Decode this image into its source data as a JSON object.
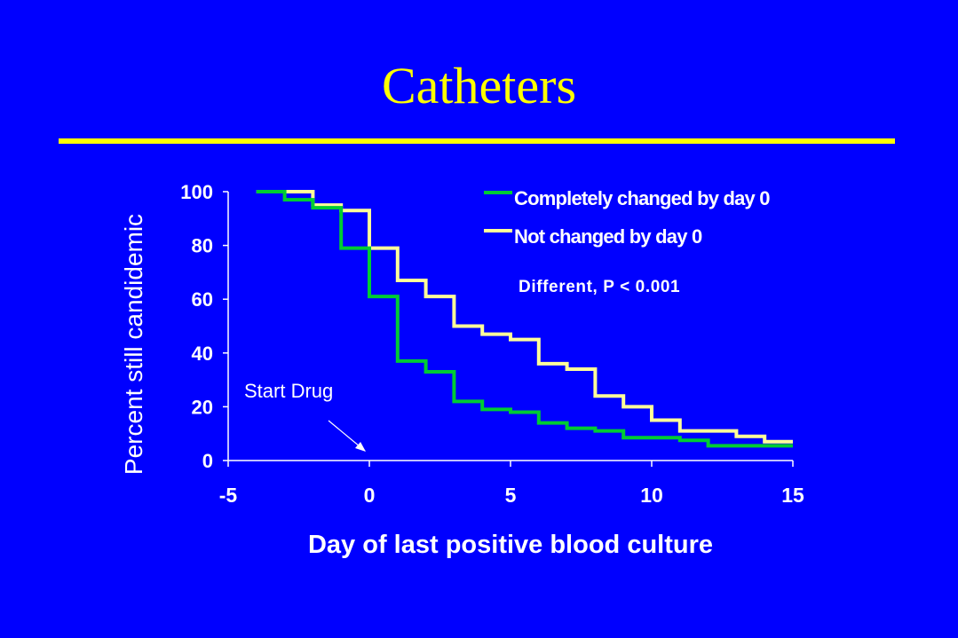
{
  "slide": {
    "title": "Catheters",
    "colors": {
      "background": "#0000ff",
      "title": "#ffff00",
      "rule": "#ffff00",
      "text": "#ffffff"
    }
  },
  "chart_data": {
    "type": "line",
    "step": true,
    "xlabel": "Day of last positive blood culture",
    "ylabel": "Percent still candidemic",
    "xlim": [
      -5,
      15
    ],
    "ylim": [
      0,
      100
    ],
    "x_ticks": [
      -5,
      0,
      5,
      10,
      15
    ],
    "y_ticks": [
      0,
      20,
      40,
      60,
      80,
      100
    ],
    "grid": false,
    "legend_position": "top-right",
    "series": [
      {
        "name": "Completely changed by day 0",
        "color": "#00cc33",
        "x": [
          -4,
          -3,
          -2,
          -1,
          0,
          1,
          2,
          3,
          4,
          5,
          6,
          7,
          8,
          9,
          10,
          11,
          12,
          13,
          14,
          15
        ],
        "y": [
          100,
          97,
          94,
          79,
          61,
          37,
          33,
          22,
          19,
          18,
          14,
          12,
          11,
          8.5,
          8.5,
          7.5,
          5.5,
          5.5,
          5.5,
          5.5
        ]
      },
      {
        "name": "Not changed by day 0",
        "color": "#ffff99",
        "x": [
          -4,
          -3,
          -2,
          -1,
          0,
          1,
          2,
          3,
          4,
          5,
          6,
          7,
          8,
          9,
          10,
          11,
          12,
          13,
          14,
          15
        ],
        "y": [
          100,
          100,
          95,
          93,
          79,
          67,
          61,
          50,
          47,
          45,
          36,
          34,
          24,
          20,
          15,
          11,
          11,
          9,
          7,
          7
        ]
      }
    ],
    "annotations": [
      {
        "text": "Different, P < 0.001"
      },
      {
        "text": "Start Drug",
        "points_to_x": 0
      }
    ]
  }
}
